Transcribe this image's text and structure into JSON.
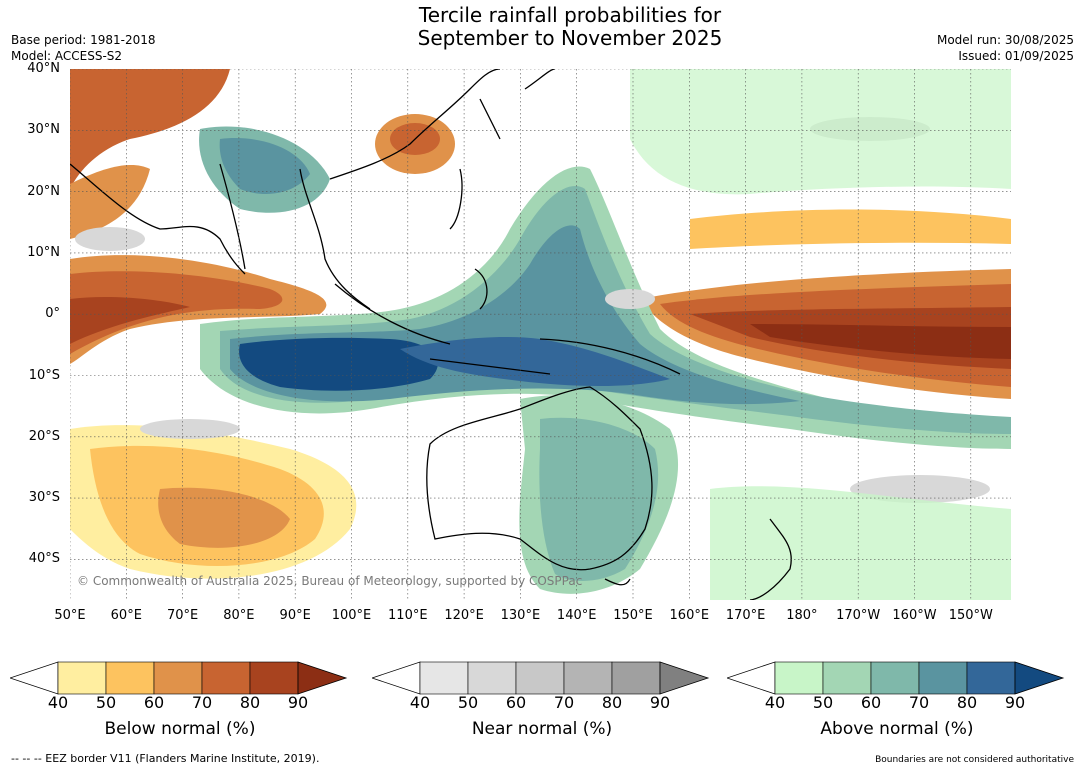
{
  "header": {
    "title_line1": "Tercile rainfall probabilities for",
    "title_line2": "September to November 2025",
    "base_period": "Base period: 1981-2018",
    "model": "Model: ACCESS-S2",
    "model_run": "Model run: 30/08/2025",
    "issued": "Issued: 01/09/2025"
  },
  "map": {
    "lat_labels": [
      "40°N",
      "30°N",
      "20°N",
      "10°N",
      "0°",
      "10°S",
      "20°S",
      "30°S",
      "40°S"
    ],
    "lon_labels": [
      "50°E",
      "60°E",
      "70°E",
      "80°E",
      "90°E",
      "100°E",
      "110°E",
      "120°E",
      "130°E",
      "140°E",
      "150°E",
      "160°E",
      "170°E",
      "180°",
      "170°W",
      "160°W",
      "150°W"
    ],
    "copyright": "© Commonwealth of Australia 2025, Bureau of Meteorology, supported by COSPPac"
  },
  "legends": [
    {
      "label": "Below normal (%)",
      "ticks": [
        "40",
        "50",
        "60",
        "70",
        "80",
        "90"
      ],
      "colors": [
        "#ffeea0",
        "#fdc35f",
        "#e0924a",
        "#c86431",
        "#a8431f",
        "#8c2e14"
      ]
    },
    {
      "label": "Near normal (%)",
      "ticks": [
        "40",
        "50",
        "60",
        "70",
        "80",
        "90"
      ],
      "colors": [
        "#e6e6e6",
        "#d8d8d8",
        "#c8c8c8",
        "#b4b4b4",
        "#a0a0a0",
        "#808080"
      ]
    },
    {
      "label": "Above normal (%)",
      "ticks": [
        "40",
        "50",
        "60",
        "70",
        "80",
        "90"
      ],
      "colors": [
        "#c8f5c8",
        "#a3d6b4",
        "#7fb8aa",
        "#5a94a0",
        "#336799",
        "#134a80"
      ]
    }
  ],
  "footer": {
    "eez_note": "--  --  -- EEZ border V11 (Flanders Marine Institute, 2019).",
    "boundaries_note": "Boundaries are not considered authoritative"
  }
}
